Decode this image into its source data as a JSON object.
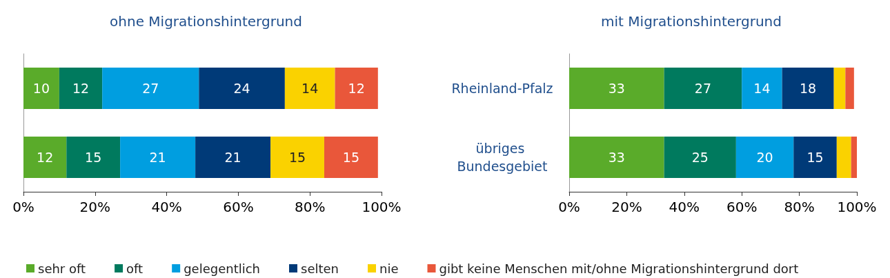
{
  "chart_data": [
    {
      "type": "bar",
      "title": "ohne Migrationshintergrund",
      "orientation": "horizontal",
      "stacked": true,
      "categories": [
        "Rheinland-Pfalz",
        "übriges Bundesgebiet"
      ],
      "xlim": [
        0,
        100
      ],
      "xticks": [
        {
          "value": 0,
          "label": "0%"
        },
        {
          "value": 20,
          "label": "20%"
        },
        {
          "value": 40,
          "label": "40%"
        },
        {
          "value": 60,
          "label": "60%"
        },
        {
          "value": 80,
          "label": "80%"
        },
        {
          "value": 100,
          "label": "100%"
        }
      ],
      "tick_labels": "x",
      "legend": "bottom",
      "data_labels": true,
      "series": [
        {
          "name": "sehr oft",
          "color": "#5aab2a",
          "values": [
            10,
            12
          ]
        },
        {
          "name": "oft",
          "color": "#007a5e",
          "values": [
            12,
            15
          ]
        },
        {
          "name": "gelegentlich",
          "color": "#009ee0",
          "values": [
            27,
            21
          ]
        },
        {
          "name": "selten",
          "color": "#003a78",
          "values": [
            24,
            21
          ]
        },
        {
          "name": "nie",
          "color": "#fad200",
          "values": [
            14,
            15
          ]
        },
        {
          "name": "gibt keine Menschen mit/ohne Migrationshintergrund dort",
          "color": "#e9573a",
          "values": [
            12,
            15
          ]
        }
      ]
    },
    {
      "type": "bar",
      "title": "mit Migrationshintergrund",
      "orientation": "horizontal",
      "stacked": true,
      "categories": [
        "Rheinland-Pfalz",
        "übriges Bundesgebiet"
      ],
      "xlim": [
        0,
        100
      ],
      "xticks": [
        {
          "value": 0,
          "label": "0%"
        },
        {
          "value": 20,
          "label": "20%"
        },
        {
          "value": 40,
          "label": "40%"
        },
        {
          "value": 60,
          "label": "60%"
        },
        {
          "value": 80,
          "label": "80%"
        },
        {
          "value": 100,
          "label": "100%"
        }
      ],
      "series": [
        {
          "name": "sehr oft",
          "color": "#5aab2a",
          "values": [
            33,
            33
          ],
          "value_labels": [
            "33",
            "33"
          ]
        },
        {
          "name": "oft",
          "color": "#007a5e",
          "values": [
            27,
            25
          ],
          "value_labels": [
            "27",
            "25"
          ]
        },
        {
          "name": "gelegentlich",
          "color": "#009ee0",
          "values": [
            14,
            20
          ],
          "value_labels": [
            "14",
            "20"
          ]
        },
        {
          "name": "selten",
          "color": "#003a78",
          "values": [
            18,
            15
          ],
          "value_labels": [
            "18",
            "15"
          ]
        },
        {
          "name": "nie",
          "color": "#fad200",
          "values": [
            4,
            5
          ],
          "value_labels": [
            null,
            null
          ]
        },
        {
          "name": "gibt keine Menschen mit/ohne Migrationshintergrund dort",
          "color": "#e9573a",
          "values": [
            3,
            2
          ],
          "value_labels": [
            null,
            null
          ]
        }
      ]
    }
  ]
}
